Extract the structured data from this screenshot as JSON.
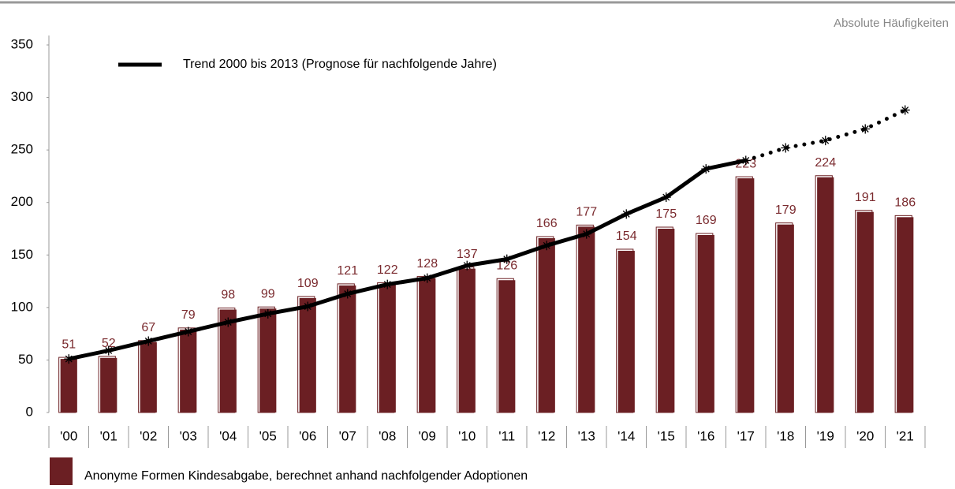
{
  "chart_data": {
    "type": "bar",
    "subtitle": "Absolute Häufigkeiten",
    "categories": [
      "'00",
      "'01",
      "'02",
      "'03",
      "'04",
      "'05",
      "'06",
      "'07",
      "'08",
      "'09",
      "'10",
      "'11",
      "'12",
      "'13",
      "'14",
      "'15",
      "'16",
      "'17",
      "'18",
      "'19",
      "'20",
      "'21"
    ],
    "series": [
      {
        "name": "Anonyme Formen Kindesabgabe, berechnet anhand nachfolgender Adoptionen",
        "color": "#6b1f23",
        "values": [
          51,
          52,
          67,
          79,
          98,
          99,
          109,
          121,
          122,
          128,
          137,
          126,
          166,
          177,
          154,
          175,
          169,
          223,
          179,
          224,
          191,
          186
        ]
      },
      {
        "name": "Trend 2000 bis 2013 (Prognose für nachfolgende Jahre)",
        "type": "line",
        "color": "#000000",
        "forecast_from_index": 17,
        "values": [
          51,
          59,
          68,
          77,
          86,
          94,
          101,
          113,
          122,
          128,
          140,
          146,
          159,
          170,
          189,
          205,
          232,
          240,
          252,
          259,
          270,
          288
        ]
      }
    ],
    "ylim": [
      0,
      350
    ],
    "yticks": [
      0,
      50,
      100,
      150,
      200,
      250,
      300,
      350
    ]
  }
}
